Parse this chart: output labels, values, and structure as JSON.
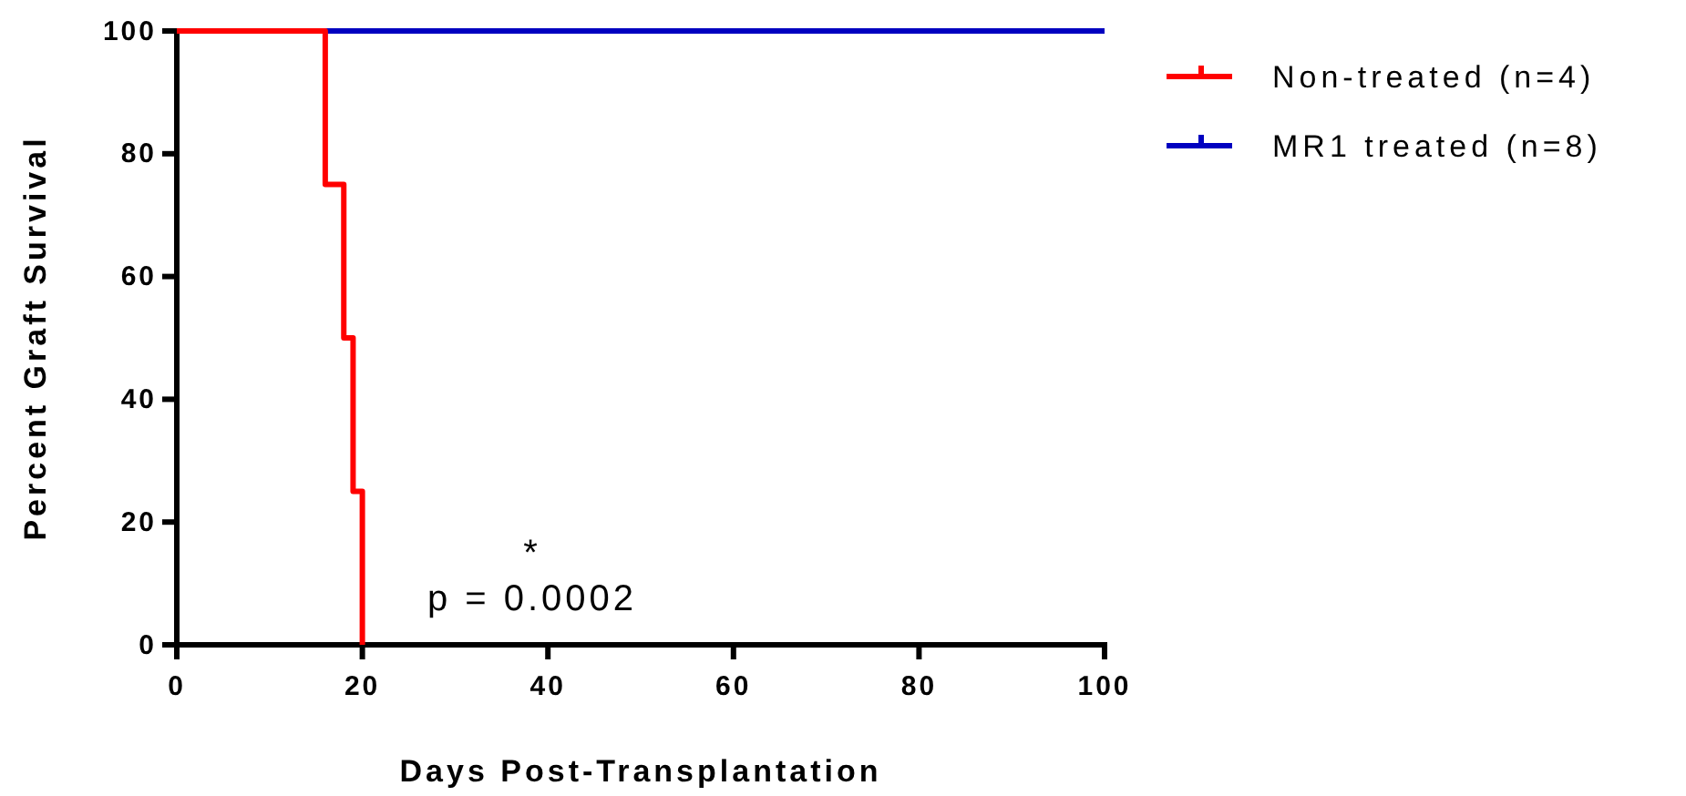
{
  "chart_data": {
    "type": "step",
    "xlabel": "Days Post-Transplantation",
    "ylabel": "Percent Graft Survival",
    "xlim": [
      0,
      100
    ],
    "xticks": [
      0,
      20,
      40,
      60,
      80,
      100
    ],
    "ylim": [
      0,
      100
    ],
    "yticks": [
      0,
      20,
      40,
      60,
      80,
      100
    ],
    "series": [
      {
        "name": "Non-treated (n=4)",
        "color": "#ff0000",
        "x": [
          0,
          16,
          18,
          19,
          20
        ],
        "values": [
          100,
          75,
          50,
          25,
          0
        ]
      },
      {
        "name": "MR1 treated (n=8)",
        "color": "#0000c0",
        "x": [
          0,
          100
        ],
        "values": [
          100,
          100
        ]
      }
    ],
    "annotations": [
      "*",
      "p = 0.0002"
    ],
    "legend": "top right",
    "grid": false
  }
}
